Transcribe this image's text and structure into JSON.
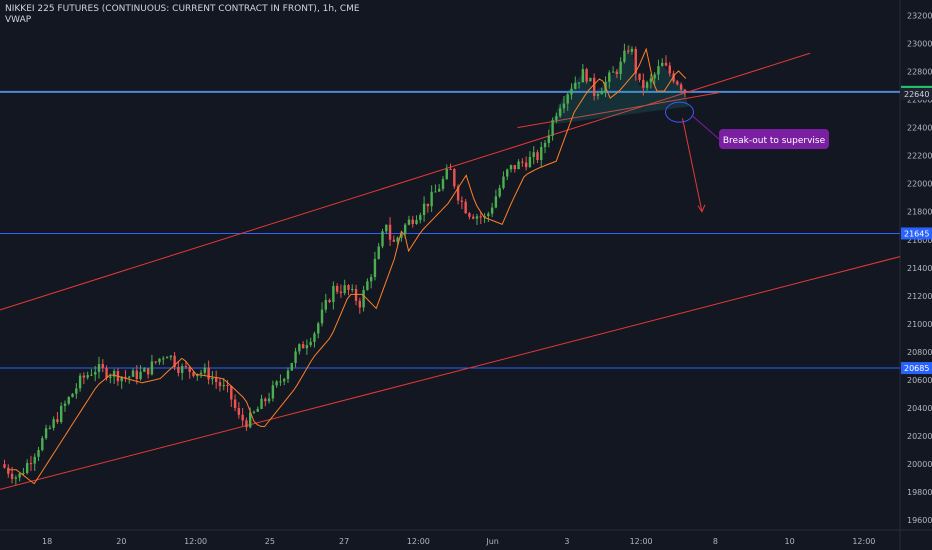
{
  "header": {
    "symbol": "NIKKEI 225 FUTURES (CONTINUOUS: CURRENT CONTRACT IN FRONT), 1h, CME",
    "indicator": "VWAP"
  },
  "colors": {
    "background": "#131722",
    "up_candle": "#26a69a",
    "up_wick": "#4caf50",
    "down_candle": "#ef5350",
    "vwap": "#ff7f27",
    "trend_line": "#e53935",
    "hline": "#2962ff",
    "hline_upper": "#4a8ad8",
    "price_tag_current": "#26c26b",
    "price_tag_blue": "#2962ff",
    "annotation": "#7b1fa2",
    "ellipse": "#3d5afe"
  },
  "chart_data": {
    "type": "candlestick",
    "y_axis": {
      "ylim": [
        19530,
        23310
      ],
      "ticks": [
        19600,
        19800,
        20000,
        20200,
        20400,
        20600,
        20800,
        21000,
        21200,
        21400,
        21600,
        21800,
        22000,
        22200,
        22400,
        22600,
        22800,
        23000,
        23200
      ],
      "position": "right"
    },
    "x_axis": {
      "ticks": [
        "18",
        "20",
        "12:00",
        "25",
        "27",
        "12:00",
        "Jun",
        "3",
        "12:00",
        "8",
        "10",
        "12:00"
      ]
    },
    "price_path": [
      [
        0,
        20000
      ],
      [
        0.02,
        19900
      ],
      [
        0.06,
        20300
      ],
      [
        0.09,
        20600
      ],
      [
        0.105,
        20680
      ],
      [
        0.14,
        20620
      ],
      [
        0.16,
        20650
      ],
      [
        0.185,
        20800
      ],
      [
        0.2,
        20680
      ],
      [
        0.23,
        20650
      ],
      [
        0.255,
        20500
      ],
      [
        0.265,
        20330
      ],
      [
        0.275,
        20300
      ],
      [
        0.3,
        20500
      ],
      [
        0.31,
        20580
      ],
      [
        0.33,
        20800
      ],
      [
        0.35,
        20950
      ],
      [
        0.36,
        21100
      ],
      [
        0.37,
        21250
      ],
      [
        0.385,
        21250
      ],
      [
        0.4,
        21150
      ],
      [
        0.42,
        21500
      ],
      [
        0.43,
        21750
      ],
      [
        0.435,
        21550
      ],
      [
        0.45,
        21700
      ],
      [
        0.48,
        21900
      ],
      [
        0.5,
        22100
      ],
      [
        0.51,
        21900
      ],
      [
        0.52,
        21800
      ],
      [
        0.54,
        21750
      ],
      [
        0.55,
        21900
      ],
      [
        0.565,
        22100
      ],
      [
        0.58,
        22150
      ],
      [
        0.6,
        22200
      ],
      [
        0.62,
        22550
      ],
      [
        0.635,
        22700
      ],
      [
        0.65,
        22800
      ],
      [
        0.66,
        22650
      ],
      [
        0.67,
        22700
      ],
      [
        0.69,
        22850
      ],
      [
        0.7,
        23000
      ],
      [
        0.71,
        22700
      ],
      [
        0.72,
        22700
      ],
      [
        0.735,
        22850
      ],
      [
        0.75,
        22750
      ],
      [
        0.765,
        22640
      ]
    ],
    "vwap_lag": 0.018,
    "horizontal_levels": [
      {
        "value": 22655,
        "label": "22655",
        "style": "current"
      },
      {
        "value": 22640,
        "label": "22640",
        "style": "dark"
      },
      {
        "value": 21645,
        "label": "21645",
        "style": "blue"
      },
      {
        "value": 20685,
        "label": "20685",
        "style": "blue"
      }
    ],
    "annotation": {
      "text": "Break-out to supervise",
      "target_value": 21800
    }
  }
}
